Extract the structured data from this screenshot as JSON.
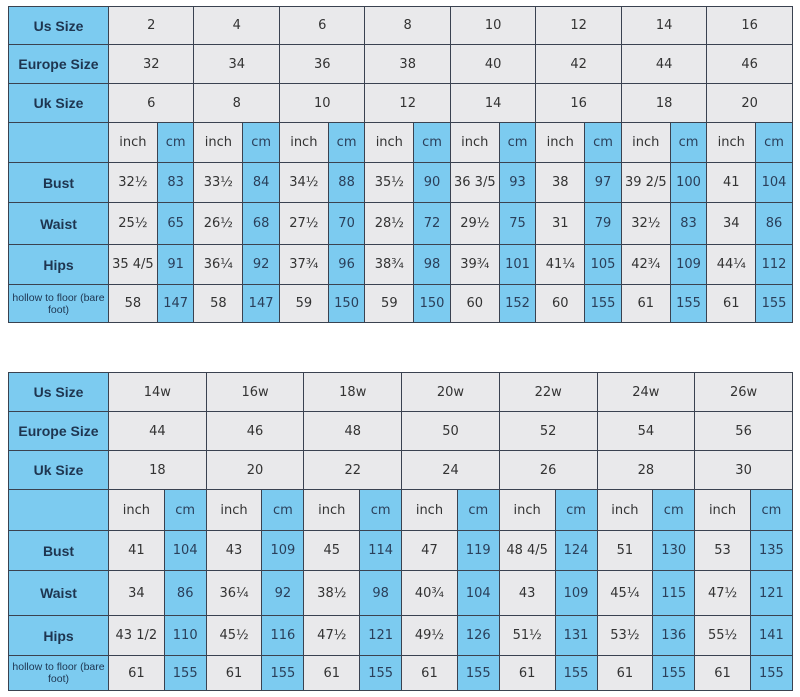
{
  "colors": {
    "label_bg": "#7ccbf0",
    "cell_bg": "#e9e9eb",
    "cm_bg": "#7ccbf0"
  },
  "tables": [
    {
      "row_labels": {
        "us": "Us Size",
        "eu": "Europe Size",
        "uk": "Uk Size",
        "units": "",
        "bust": "Bust",
        "waist": "Waist",
        "hips": "Hips",
        "hollow": "hollow to floor (bare foot)"
      },
      "unit_inch": "inch",
      "unit_cm": "cm",
      "us": [
        "2",
        "4",
        "6",
        "8",
        "10",
        "12",
        "14",
        "16"
      ],
      "eu": [
        "32",
        "34",
        "36",
        "38",
        "40",
        "42",
        "44",
        "46"
      ],
      "uk": [
        "6",
        "8",
        "10",
        "12",
        "14",
        "16",
        "18",
        "20"
      ],
      "bust": [
        [
          "32½",
          "83"
        ],
        [
          "33½",
          "84"
        ],
        [
          "34½",
          "88"
        ],
        [
          "35½",
          "90"
        ],
        [
          "36 3/5",
          "93"
        ],
        [
          "38",
          "97"
        ],
        [
          "39 2/5",
          "100"
        ],
        [
          "41",
          "104"
        ]
      ],
      "waist": [
        [
          "25½",
          "65"
        ],
        [
          "26½",
          "68"
        ],
        [
          "27½",
          "70"
        ],
        [
          "28½",
          "72"
        ],
        [
          "29½",
          "75"
        ],
        [
          "31",
          "79"
        ],
        [
          "32½",
          "83"
        ],
        [
          "34",
          "86"
        ]
      ],
      "hips": [
        [
          "35 4/5",
          "91"
        ],
        [
          "36¼",
          "92"
        ],
        [
          "37¾",
          "96"
        ],
        [
          "38¾",
          "98"
        ],
        [
          "39¾",
          "101"
        ],
        [
          "41¼",
          "105"
        ],
        [
          "42¾",
          "109"
        ],
        [
          "44¼",
          "112"
        ]
      ],
      "hollow": [
        [
          "58",
          "147"
        ],
        [
          "58",
          "147"
        ],
        [
          "59",
          "150"
        ],
        [
          "59",
          "150"
        ],
        [
          "60",
          "152"
        ],
        [
          "60",
          "155"
        ],
        [
          "61",
          "155"
        ],
        [
          "61",
          "155"
        ]
      ]
    },
    {
      "row_labels": {
        "us": "Us Size",
        "eu": "Europe Size",
        "uk": "Uk Size",
        "units": "",
        "bust": "Bust",
        "waist": "Waist",
        "hips": "Hips",
        "hollow": "hollow to floor (bare foot)"
      },
      "unit_inch": "inch",
      "unit_cm": "cm",
      "us": [
        "14w",
        "16w",
        "18w",
        "20w",
        "22w",
        "24w",
        "26w"
      ],
      "eu": [
        "44",
        "46",
        "48",
        "50",
        "52",
        "54",
        "56"
      ],
      "uk": [
        "18",
        "20",
        "22",
        "24",
        "26",
        "28",
        "30"
      ],
      "bust": [
        [
          "41",
          "104"
        ],
        [
          "43",
          "109"
        ],
        [
          "45",
          "114"
        ],
        [
          "47",
          "119"
        ],
        [
          "48 4/5",
          "124"
        ],
        [
          "51",
          "130"
        ],
        [
          "53",
          "135"
        ]
      ],
      "waist": [
        [
          "34",
          "86"
        ],
        [
          "36¼",
          "92"
        ],
        [
          "38½",
          "98"
        ],
        [
          "40¾",
          "104"
        ],
        [
          "43",
          "109"
        ],
        [
          "45¼",
          "115"
        ],
        [
          "47½",
          "121"
        ]
      ],
      "hips": [
        [
          "43 1/2",
          "110"
        ],
        [
          "45½",
          "116"
        ],
        [
          "47½",
          "121"
        ],
        [
          "49½",
          "126"
        ],
        [
          "51½",
          "131"
        ],
        [
          "53½",
          "136"
        ],
        [
          "55½",
          "141"
        ]
      ],
      "hollow": [
        [
          "61",
          "155"
        ],
        [
          "61",
          "155"
        ],
        [
          "61",
          "155"
        ],
        [
          "61",
          "155"
        ],
        [
          "61",
          "155"
        ],
        [
          "61",
          "155"
        ],
        [
          "61",
          "155"
        ]
      ]
    }
  ]
}
